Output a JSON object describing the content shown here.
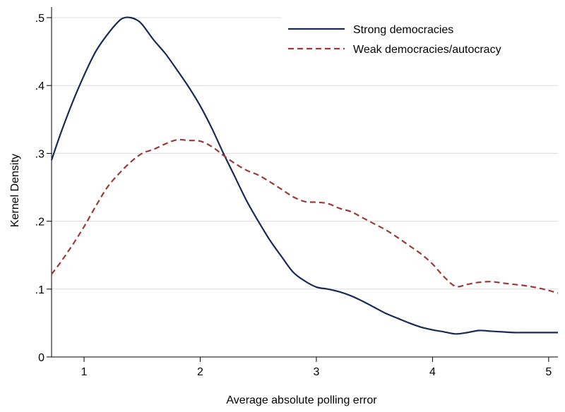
{
  "chart_data": {
    "type": "line",
    "xlabel": "Average absolute polling error",
    "ylabel": "Kernel Density",
    "xlim": [
      0.72,
      5.08
    ],
    "ylim": [
      0,
      0.5
    ],
    "x_ticks": [
      1,
      2,
      3,
      4,
      5
    ],
    "x_tick_labels": [
      "1",
      "2",
      "3",
      "4",
      "5"
    ],
    "y_ticks": [
      0,
      0.1,
      0.2,
      0.3,
      0.4,
      0.5
    ],
    "y_tick_labels": [
      "0",
      ".1",
      ".2",
      ".3",
      ".4",
      ".5"
    ],
    "grid": "horizontal",
    "legend_position": "top-right",
    "series": [
      {
        "name": "Strong democracies",
        "color": "#1a2a55",
        "style": "solid",
        "x": [
          0.72,
          0.8,
          0.9,
          1.0,
          1.1,
          1.2,
          1.3,
          1.35,
          1.4,
          1.45,
          1.5,
          1.6,
          1.7,
          1.8,
          1.9,
          2.0,
          2.1,
          2.2,
          2.3,
          2.4,
          2.5,
          2.6,
          2.7,
          2.8,
          2.9,
          3.0,
          3.1,
          3.2,
          3.3,
          3.4,
          3.5,
          3.6,
          3.7,
          3.8,
          3.9,
          4.0,
          4.1,
          4.2,
          4.3,
          4.4,
          4.5,
          4.6,
          4.7,
          4.8,
          4.9,
          5.0,
          5.08
        ],
        "y": [
          0.29,
          0.33,
          0.375,
          0.415,
          0.45,
          0.475,
          0.495,
          0.5,
          0.5,
          0.497,
          0.49,
          0.467,
          0.447,
          0.423,
          0.398,
          0.37,
          0.337,
          0.3,
          0.265,
          0.23,
          0.2,
          0.172,
          0.148,
          0.125,
          0.112,
          0.103,
          0.1,
          0.096,
          0.09,
          0.082,
          0.073,
          0.064,
          0.057,
          0.05,
          0.044,
          0.04,
          0.037,
          0.034,
          0.036,
          0.039,
          0.038,
          0.037,
          0.036,
          0.036,
          0.036,
          0.036,
          0.036
        ]
      },
      {
        "name": "Weak democracies/autocracy",
        "color": "#9b3a3a",
        "style": "dashed",
        "x": [
          0.72,
          0.8,
          0.9,
          1.0,
          1.1,
          1.2,
          1.3,
          1.4,
          1.5,
          1.6,
          1.7,
          1.8,
          1.9,
          2.0,
          2.1,
          2.2,
          2.3,
          2.4,
          2.5,
          2.6,
          2.7,
          2.8,
          2.9,
          3.0,
          3.1,
          3.2,
          3.3,
          3.4,
          3.5,
          3.6,
          3.7,
          3.8,
          3.9,
          4.0,
          4.1,
          4.2,
          4.3,
          4.4,
          4.5,
          4.6,
          4.7,
          4.8,
          4.9,
          5.0,
          5.08
        ],
        "y": [
          0.122,
          0.14,
          0.165,
          0.192,
          0.222,
          0.25,
          0.27,
          0.287,
          0.3,
          0.306,
          0.314,
          0.32,
          0.319,
          0.318,
          0.31,
          0.297,
          0.285,
          0.275,
          0.268,
          0.258,
          0.247,
          0.236,
          0.229,
          0.228,
          0.226,
          0.219,
          0.214,
          0.205,
          0.196,
          0.187,
          0.176,
          0.164,
          0.152,
          0.137,
          0.118,
          0.104,
          0.107,
          0.11,
          0.111,
          0.109,
          0.107,
          0.105,
          0.102,
          0.098,
          0.094
        ]
      }
    ]
  }
}
